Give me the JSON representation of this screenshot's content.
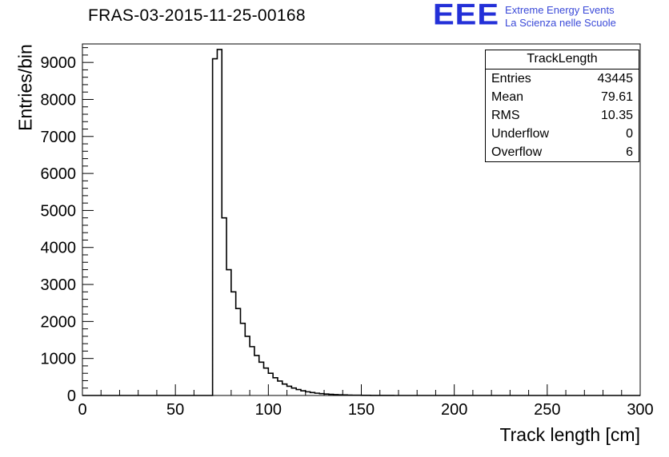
{
  "title": "FRAS-03-2015-11-25-00168",
  "logo": {
    "acronym": "EEE",
    "line1": "Extreme Energy Events",
    "line2": "La Scienza nelle Scuole",
    "color": "#2330d8"
  },
  "stats_box": {
    "title": "TrackLength",
    "rows": [
      {
        "label": "Entries",
        "value": "43445"
      },
      {
        "label": "Mean",
        "value": "79.61"
      },
      {
        "label": "RMS",
        "value": "10.35"
      },
      {
        "label": "Underflow",
        "value": "0"
      },
      {
        "label": "Overflow",
        "value": "6"
      }
    ]
  },
  "chart_data": {
    "type": "bar",
    "subtype": "step-histogram",
    "title": "FRAS-03-2015-11-25-00168",
    "xlabel": "Track length [cm]",
    "ylabel": "Entries/bin",
    "xlim": [
      0,
      300
    ],
    "ylim": [
      0,
      9500
    ],
    "grid": false,
    "legend": false,
    "x_major_ticks": [
      0,
      50,
      100,
      150,
      200,
      250,
      300
    ],
    "x_minor_step": 10,
    "y_major_ticks": [
      0,
      1000,
      2000,
      3000,
      4000,
      5000,
      6000,
      7000,
      8000,
      9000
    ],
    "y_minor_step": 200,
    "bin_start": 70,
    "bin_width": 2.5,
    "counts": [
      9100,
      9350,
      4800,
      3400,
      2800,
      2350,
      1950,
      1600,
      1320,
      1080,
      900,
      740,
      600,
      480,
      390,
      310,
      250,
      200,
      160,
      125,
      100,
      80,
      62,
      50,
      40,
      30,
      24,
      18,
      14,
      10,
      8,
      6,
      4,
      3,
      2,
      2,
      1,
      1,
      1,
      0
    ],
    "line_color": "#000000",
    "stats": {
      "entries": 43445,
      "mean": 79.61,
      "rms": 10.35,
      "underflow": 0,
      "overflow": 6
    }
  }
}
